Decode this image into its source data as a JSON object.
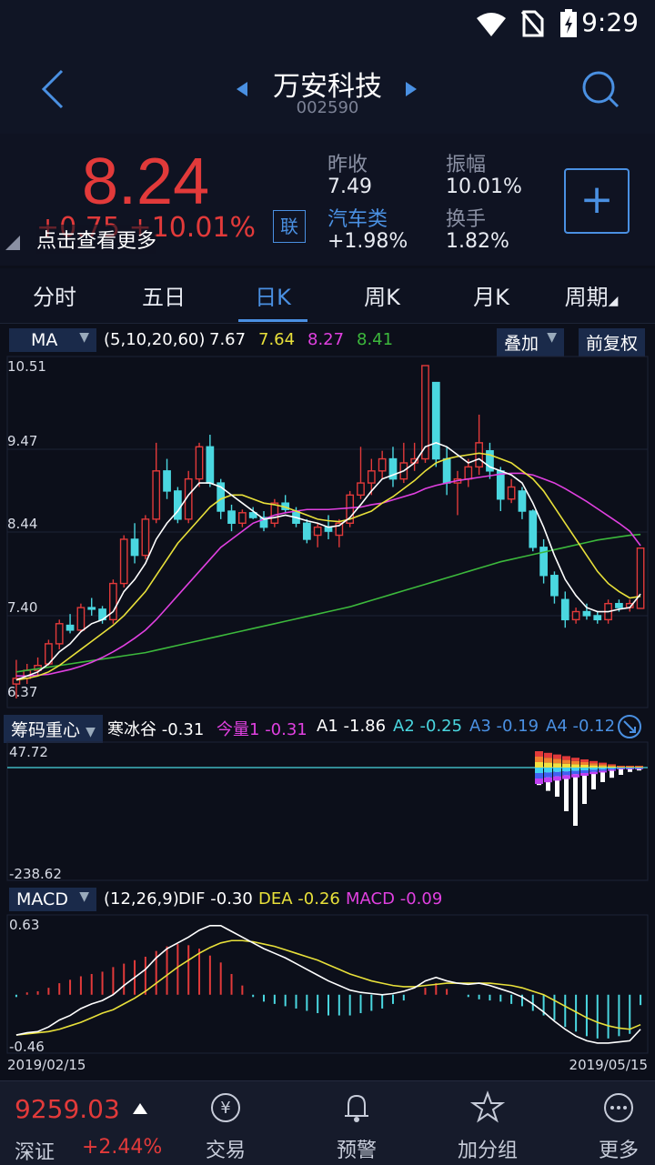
{
  "status": {
    "time": "9:29"
  },
  "header": {
    "title": "万安科技",
    "code": "002590"
  },
  "quote": {
    "price": "8.24",
    "change_abs": "+0.75",
    "change_pct": "+10.01%",
    "hint": "点击查看更多",
    "lian": "联",
    "prev_close_label": "昨收",
    "prev_close": "7.49",
    "amplitude_label": "振幅",
    "amplitude": "10.01%",
    "sector_label": "汽车类",
    "sector_change": "+1.98%",
    "turnover_label": "换手",
    "turnover": "1.82%",
    "add_label": "+"
  },
  "tabs": [
    "分时",
    "五日",
    "日K",
    "周K",
    "月K",
    "周期"
  ],
  "active_tab": "日K",
  "ma_bar": {
    "selector": "MA",
    "params": "(5,10,20,60)",
    "ma5": "7.67",
    "ma10": "7.64",
    "ma20": "8.27",
    "ma60": "8.41",
    "overlay": "叠加",
    "adjust": "前复权",
    "colors": {
      "ma5": "#ffffff",
      "ma10": "#e8e03a",
      "ma20": "#e040e0",
      "ma60": "#3cb83c"
    }
  },
  "kline_axis": {
    "ticks": [
      "10.51",
      "9.47",
      "8.44",
      "7.40",
      "6.37"
    ]
  },
  "chip_bar": {
    "selector": "筹码重心",
    "items": [
      {
        "label": "寒冰谷",
        "value": "-0.31"
      },
      {
        "label": "今量1",
        "value": "-0.31"
      },
      {
        "label": "A1",
        "value": "-1.86"
      },
      {
        "label": "A2",
        "value": "-0.25"
      },
      {
        "label": "A3",
        "value": "-0.19"
      },
      {
        "label": "A4",
        "value": "-0.12"
      }
    ],
    "top": "47.72",
    "bottom": "-238.62"
  },
  "macd_bar": {
    "selector": "MACD",
    "params": "(12,26,9)",
    "dif_label": "DIF",
    "dif": "-0.30",
    "dea_label": "DEA",
    "dea": "-0.26",
    "macd_label": "MACD",
    "macd": "-0.09",
    "top": "0.63",
    "bottom": "-0.46",
    "date_start": "2019/02/15",
    "date_end": "2019/05/15"
  },
  "bottom": {
    "index_value": "9259.03",
    "index_name": "深证",
    "index_change": "+2.44%",
    "nav": [
      "交易",
      "预警",
      "加分组",
      "更多"
    ]
  },
  "chart_data": {
    "type": "candlestick",
    "x_range": [
      "2019/02/15",
      "2019/05/15"
    ],
    "ylim": [
      6.37,
      10.51
    ],
    "candles": [
      {
        "o": 6.55,
        "h": 6.85,
        "l": 6.37,
        "c": 6.62
      },
      {
        "o": 6.62,
        "h": 6.8,
        "l": 6.55,
        "c": 6.72
      },
      {
        "o": 6.72,
        "h": 6.88,
        "l": 6.65,
        "c": 6.78
      },
      {
        "o": 6.8,
        "h": 7.1,
        "l": 6.78,
        "c": 7.05
      },
      {
        "o": 7.05,
        "h": 7.35,
        "l": 6.98,
        "c": 7.3
      },
      {
        "o": 7.28,
        "h": 7.42,
        "l": 7.18,
        "c": 7.22
      },
      {
        "o": 7.22,
        "h": 7.55,
        "l": 7.2,
        "c": 7.5
      },
      {
        "o": 7.5,
        "h": 7.62,
        "l": 7.4,
        "c": 7.48
      },
      {
        "o": 7.48,
        "h": 7.52,
        "l": 7.3,
        "c": 7.35
      },
      {
        "o": 7.35,
        "h": 7.85,
        "l": 7.3,
        "c": 7.8
      },
      {
        "o": 7.8,
        "h": 8.4,
        "l": 7.75,
        "c": 8.35
      },
      {
        "o": 8.35,
        "h": 8.55,
        "l": 8.05,
        "c": 8.15
      },
      {
        "o": 8.15,
        "h": 8.65,
        "l": 8.1,
        "c": 8.6
      },
      {
        "o": 8.6,
        "h": 9.55,
        "l": 8.55,
        "c": 9.2
      },
      {
        "o": 9.2,
        "h": 9.35,
        "l": 8.85,
        "c": 8.95
      },
      {
        "o": 8.95,
        "h": 9.0,
        "l": 8.55,
        "c": 8.6
      },
      {
        "o": 8.6,
        "h": 9.2,
        "l": 8.55,
        "c": 9.1
      },
      {
        "o": 9.1,
        "h": 9.55,
        "l": 9.0,
        "c": 9.5
      },
      {
        "o": 9.5,
        "h": 9.65,
        "l": 9.0,
        "c": 9.05
      },
      {
        "o": 9.05,
        "h": 9.1,
        "l": 8.6,
        "c": 8.7
      },
      {
        "o": 8.7,
        "h": 8.78,
        "l": 8.45,
        "c": 8.55
      },
      {
        "o": 8.55,
        "h": 8.72,
        "l": 8.5,
        "c": 8.68
      },
      {
        "o": 8.68,
        "h": 8.75,
        "l": 8.6,
        "c": 8.62
      },
      {
        "o": 8.62,
        "h": 8.7,
        "l": 8.45,
        "c": 8.5
      },
      {
        "o": 8.55,
        "h": 8.85,
        "l": 8.5,
        "c": 8.8
      },
      {
        "o": 8.8,
        "h": 8.9,
        "l": 8.68,
        "c": 8.72
      },
      {
        "o": 8.7,
        "h": 8.75,
        "l": 8.5,
        "c": 8.55
      },
      {
        "o": 8.55,
        "h": 8.6,
        "l": 8.3,
        "c": 8.35
      },
      {
        "o": 8.4,
        "h": 8.55,
        "l": 8.25,
        "c": 8.5
      },
      {
        "o": 8.5,
        "h": 8.65,
        "l": 8.35,
        "c": 8.45
      },
      {
        "o": 8.4,
        "h": 8.6,
        "l": 8.25,
        "c": 8.55
      },
      {
        "o": 8.55,
        "h": 8.95,
        "l": 8.5,
        "c": 8.9
      },
      {
        "o": 8.9,
        "h": 9.5,
        "l": 8.85,
        "c": 9.05
      },
      {
        "o": 9.05,
        "h": 9.35,
        "l": 8.9,
        "c": 9.2
      },
      {
        "o": 9.2,
        "h": 9.45,
        "l": 9.1,
        "c": 9.35
      },
      {
        "o": 9.35,
        "h": 9.5,
        "l": 9.0,
        "c": 9.1
      },
      {
        "o": 9.1,
        "h": 9.55,
        "l": 9.05,
        "c": 9.3
      },
      {
        "o": 9.3,
        "h": 9.55,
        "l": 9.2,
        "c": 9.35
      },
      {
        "o": 9.35,
        "h": 10.51,
        "l": 9.3,
        "c": 10.51
      },
      {
        "o": 10.3,
        "h": 10.3,
        "l": 9.25,
        "c": 9.35
      },
      {
        "o": 9.35,
        "h": 9.5,
        "l": 8.9,
        "c": 9.05
      },
      {
        "o": 9.05,
        "h": 9.2,
        "l": 8.65,
        "c": 9.1
      },
      {
        "o": 9.1,
        "h": 9.35,
        "l": 9.0,
        "c": 9.25
      },
      {
        "o": 9.25,
        "h": 9.9,
        "l": 9.15,
        "c": 9.55
      },
      {
        "o": 9.45,
        "h": 9.55,
        "l": 9.1,
        "c": 9.2
      },
      {
        "o": 9.2,
        "h": 9.25,
        "l": 8.7,
        "c": 8.85
      },
      {
        "o": 8.85,
        "h": 9.1,
        "l": 8.8,
        "c": 9.0
      },
      {
        "o": 8.95,
        "h": 9.0,
        "l": 8.6,
        "c": 8.7
      },
      {
        "o": 8.7,
        "h": 8.72,
        "l": 8.2,
        "c": 8.25
      },
      {
        "o": 8.25,
        "h": 8.35,
        "l": 7.8,
        "c": 7.9
      },
      {
        "o": 7.9,
        "h": 7.95,
        "l": 7.55,
        "c": 7.65
      },
      {
        "o": 7.6,
        "h": 7.7,
        "l": 7.25,
        "c": 7.35
      },
      {
        "o": 7.35,
        "h": 7.5,
        "l": 7.3,
        "c": 7.45
      },
      {
        "o": 7.45,
        "h": 7.55,
        "l": 7.35,
        "c": 7.4
      },
      {
        "o": 7.4,
        "h": 7.45,
        "l": 7.3,
        "c": 7.35
      },
      {
        "o": 7.35,
        "h": 7.6,
        "l": 7.3,
        "c": 7.55
      },
      {
        "o": 7.55,
        "h": 7.6,
        "l": 7.45,
        "c": 7.5
      },
      {
        "o": 7.5,
        "h": 7.6,
        "l": 7.45,
        "c": 7.55
      },
      {
        "o": 7.49,
        "h": 8.24,
        "l": 7.49,
        "c": 8.24
      }
    ],
    "ma5": [
      6.6,
      6.65,
      6.7,
      6.8,
      6.95,
      7.05,
      7.2,
      7.3,
      7.35,
      7.45,
      7.7,
      7.85,
      8.05,
      8.35,
      8.55,
      8.7,
      8.9,
      9.05,
      9.05,
      9.0,
      8.9,
      8.8,
      8.7,
      8.6,
      8.62,
      8.65,
      8.62,
      8.58,
      8.55,
      8.5,
      8.52,
      8.62,
      8.78,
      8.95,
      9.1,
      9.15,
      9.2,
      9.3,
      9.5,
      9.55,
      9.5,
      9.4,
      9.3,
      9.35,
      9.25,
      9.2,
      9.15,
      9.05,
      8.8,
      8.5,
      8.15,
      7.85,
      7.65,
      7.5,
      7.45,
      7.45,
      7.48,
      7.5,
      7.67
    ],
    "ma10": [
      6.6,
      6.62,
      6.65,
      6.7,
      6.78,
      6.88,
      6.98,
      7.08,
      7.18,
      7.28,
      7.4,
      7.55,
      7.7,
      7.9,
      8.1,
      8.3,
      8.45,
      8.6,
      8.75,
      8.85,
      8.9,
      8.9,
      8.85,
      8.8,
      8.78,
      8.75,
      8.7,
      8.65,
      8.6,
      8.58,
      8.57,
      8.6,
      8.65,
      8.7,
      8.8,
      8.88,
      8.98,
      9.08,
      9.2,
      9.3,
      9.35,
      9.38,
      9.4,
      9.42,
      9.4,
      9.35,
      9.3,
      9.2,
      9.1,
      8.95,
      8.75,
      8.55,
      8.35,
      8.15,
      7.95,
      7.8,
      7.7,
      7.62,
      7.64
    ],
    "ma20": [
      6.65,
      6.65,
      6.66,
      6.67,
      6.7,
      6.73,
      6.77,
      6.82,
      6.88,
      6.95,
      7.03,
      7.12,
      7.22,
      7.35,
      7.5,
      7.65,
      7.8,
      7.95,
      8.1,
      8.25,
      8.35,
      8.45,
      8.55,
      8.6,
      8.65,
      8.68,
      8.7,
      8.72,
      8.72,
      8.72,
      8.73,
      8.74,
      8.75,
      8.78,
      8.8,
      8.84,
      8.88,
      8.92,
      8.98,
      9.02,
      9.05,
      9.08,
      9.1,
      9.12,
      9.14,
      9.16,
      9.17,
      9.17,
      9.15,
      9.1,
      9.05,
      8.98,
      8.9,
      8.82,
      8.73,
      8.64,
      8.55,
      8.45,
      8.27
    ],
    "ma60": [
      6.7,
      6.72,
      6.74,
      6.76,
      6.78,
      6.8,
      6.82,
      6.84,
      6.86,
      6.88,
      6.9,
      6.92,
      6.94,
      6.97,
      7.0,
      7.03,
      7.06,
      7.09,
      7.12,
      7.15,
      7.18,
      7.21,
      7.24,
      7.27,
      7.3,
      7.33,
      7.36,
      7.39,
      7.42,
      7.45,
      7.48,
      7.51,
      7.55,
      7.59,
      7.63,
      7.67,
      7.71,
      7.75,
      7.79,
      7.83,
      7.87,
      7.91,
      7.95,
      7.99,
      8.03,
      8.07,
      8.1,
      8.13,
      8.16,
      8.19,
      8.22,
      8.25,
      8.28,
      8.31,
      8.34,
      8.36,
      8.38,
      8.4,
      8.41
    ],
    "macd_dif": [
      -0.35,
      -0.33,
      -0.32,
      -0.28,
      -0.22,
      -0.18,
      -0.12,
      -0.08,
      -0.05,
      0.0,
      0.08,
      0.15,
      0.22,
      0.32,
      0.4,
      0.45,
      0.5,
      0.56,
      0.6,
      0.6,
      0.55,
      0.5,
      0.45,
      0.4,
      0.36,
      0.32,
      0.27,
      0.22,
      0.17,
      0.12,
      0.08,
      0.04,
      0.02,
      0.01,
      0.0,
      0.01,
      0.03,
      0.06,
      0.12,
      0.15,
      0.12,
      0.1,
      0.09,
      0.1,
      0.08,
      0.05,
      0.02,
      -0.02,
      -0.08,
      -0.15,
      -0.23,
      -0.3,
      -0.36,
      -0.4,
      -0.42,
      -0.42,
      -0.41,
      -0.4,
      -0.3
    ],
    "macd_dea": [
      -0.35,
      -0.34,
      -0.33,
      -0.32,
      -0.3,
      -0.27,
      -0.24,
      -0.2,
      -0.16,
      -0.13,
      -0.08,
      -0.03,
      0.03,
      0.1,
      0.17,
      0.24,
      0.3,
      0.36,
      0.41,
      0.45,
      0.47,
      0.47,
      0.46,
      0.44,
      0.42,
      0.39,
      0.36,
      0.33,
      0.3,
      0.26,
      0.22,
      0.18,
      0.15,
      0.12,
      0.1,
      0.08,
      0.07,
      0.07,
      0.08,
      0.09,
      0.1,
      0.1,
      0.1,
      0.1,
      0.1,
      0.09,
      0.08,
      0.06,
      0.03,
      0.0,
      -0.05,
      -0.1,
      -0.15,
      -0.2,
      -0.24,
      -0.27,
      -0.29,
      -0.3,
      -0.26
    ],
    "macd_hist": [
      -0.02,
      0.02,
      0.03,
      0.06,
      0.1,
      0.13,
      0.16,
      0.18,
      0.2,
      0.24,
      0.27,
      0.3,
      0.33,
      0.38,
      0.42,
      0.44,
      0.43,
      0.4,
      0.34,
      0.28,
      0.18,
      0.08,
      -0.02,
      -0.06,
      -0.08,
      -0.1,
      -0.12,
      -0.14,
      -0.16,
      -0.18,
      -0.18,
      -0.18,
      -0.16,
      -0.14,
      -0.12,
      -0.08,
      -0.05,
      0.0,
      0.06,
      0.1,
      0.05,
      0.0,
      -0.02,
      -0.04,
      -0.05,
      -0.06,
      -0.08,
      -0.1,
      -0.14,
      -0.18,
      -0.22,
      -0.28,
      -0.32,
      -0.36,
      -0.38,
      -0.38,
      -0.36,
      -0.34,
      -0.09
    ],
    "chip_bars": [
      {
        "v": -0.12
      },
      {
        "v": -0.16
      },
      {
        "v": -0.2
      },
      {
        "v": -0.3
      },
      {
        "v": -0.4
      },
      {
        "v": -0.25
      },
      {
        "v": -0.15
      },
      {
        "v": -0.1
      },
      {
        "v": -0.07
      },
      {
        "v": -0.05
      },
      {
        "v": -0.03
      },
      {
        "v": -0.02
      }
    ]
  }
}
